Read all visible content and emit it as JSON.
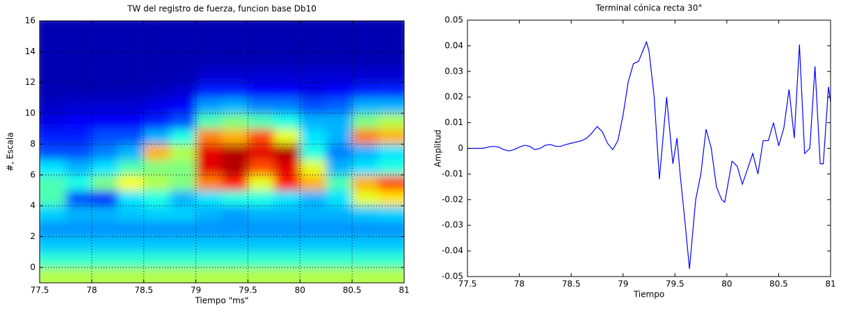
{
  "chart_data": [
    {
      "type": "heatmap",
      "title": "TW del registro de fuerza, funcion base Db10",
      "x_label": "Tiempo \"ms\"",
      "y_label": "#, Escala",
      "colormap": "jet",
      "grid": true,
      "x": [
        77.625,
        77.875,
        78.125,
        78.375,
        78.625,
        78.875,
        79.125,
        79.375,
        79.625,
        79.875,
        80.125,
        80.375,
        80.625,
        80.875
      ],
      "y": [
        -0.5,
        0.5,
        1.5,
        2.5,
        3.5,
        4.5,
        5.5,
        6.5,
        7.5,
        8.5,
        9.5,
        10.5,
        11.5,
        12.5,
        13.5,
        14.5,
        15.5
      ],
      "z": [
        [
          0.55,
          0.55,
          0.55,
          0.55,
          0.55,
          0.55,
          0.55,
          0.55,
          0.55,
          0.55,
          0.55,
          0.55,
          0.55,
          0.55
        ],
        [
          0.42,
          0.42,
          0.42,
          0.42,
          0.42,
          0.42,
          0.42,
          0.42,
          0.42,
          0.42,
          0.42,
          0.42,
          0.42,
          0.42
        ],
        [
          0.32,
          0.32,
          0.32,
          0.32,
          0.32,
          0.32,
          0.32,
          0.32,
          0.32,
          0.32,
          0.32,
          0.32,
          0.32,
          0.32
        ],
        [
          0.27,
          0.27,
          0.27,
          0.27,
          0.27,
          0.27,
          0.27,
          0.27,
          0.27,
          0.27,
          0.27,
          0.27,
          0.27,
          0.27
        ],
        [
          0.33,
          0.3,
          0.3,
          0.32,
          0.33,
          0.33,
          0.3,
          0.28,
          0.3,
          0.3,
          0.3,
          0.3,
          0.32,
          0.33
        ],
        [
          0.45,
          0.2,
          0.15,
          0.35,
          0.4,
          0.3,
          0.35,
          0.4,
          0.4,
          0.35,
          0.3,
          0.35,
          0.6,
          0.65
        ],
        [
          0.45,
          0.4,
          0.5,
          0.62,
          0.55,
          0.5,
          0.75,
          0.85,
          0.6,
          0.85,
          0.7,
          0.45,
          0.7,
          0.8
        ],
        [
          0.35,
          0.3,
          0.35,
          0.45,
          0.5,
          0.5,
          0.9,
          0.95,
          0.8,
          0.9,
          0.6,
          0.3,
          0.35,
          0.4
        ],
        [
          0.2,
          0.2,
          0.25,
          0.3,
          0.7,
          0.55,
          0.9,
          0.95,
          0.9,
          0.95,
          0.4,
          0.25,
          0.3,
          0.35
        ],
        [
          0.15,
          0.15,
          0.2,
          0.2,
          0.3,
          0.4,
          0.75,
          0.7,
          0.8,
          0.6,
          0.35,
          0.3,
          0.75,
          0.7
        ],
        [
          0.1,
          0.12,
          0.12,
          0.12,
          0.15,
          0.2,
          0.45,
          0.5,
          0.45,
          0.4,
          0.3,
          0.3,
          0.5,
          0.55
        ],
        [
          0.07,
          0.08,
          0.08,
          0.08,
          0.1,
          0.12,
          0.28,
          0.3,
          0.25,
          0.25,
          0.2,
          0.22,
          0.3,
          0.3
        ],
        [
          0.05,
          0.05,
          0.05,
          0.05,
          0.06,
          0.08,
          0.15,
          0.15,
          0.12,
          0.12,
          0.1,
          0.12,
          0.15,
          0.16
        ],
        [
          0.05,
          0.05,
          0.05,
          0.05,
          0.05,
          0.05,
          0.08,
          0.08,
          0.08,
          0.08,
          0.08,
          0.08,
          0.08,
          0.08
        ],
        [
          0.05,
          0.05,
          0.05,
          0.05,
          0.05,
          0.05,
          0.05,
          0.05,
          0.05,
          0.05,
          0.05,
          0.05,
          0.05,
          0.05
        ],
        [
          0.05,
          0.05,
          0.05,
          0.05,
          0.05,
          0.05,
          0.05,
          0.05,
          0.05,
          0.05,
          0.05,
          0.05,
          0.05,
          0.05
        ],
        [
          0.05,
          0.05,
          0.05,
          0.05,
          0.05,
          0.05,
          0.05,
          0.05,
          0.05,
          0.05,
          0.05,
          0.05,
          0.05,
          0.05
        ]
      ],
      "xlim": [
        77.5,
        81
      ],
      "ylim": [
        -1,
        16
      ],
      "xticks": [
        77.5,
        78,
        78.5,
        79,
        79.5,
        80,
        80.5,
        81
      ],
      "yticks": [
        0,
        2,
        4,
        6,
        8,
        10,
        12,
        14,
        16
      ]
    },
    {
      "type": "line",
      "title": "Terminal cónica recta 30°",
      "x_label": "Tiempo",
      "y_label": "Amplitud",
      "grid": false,
      "x": [
        77.5,
        77.55,
        77.6,
        77.65,
        77.7,
        77.75,
        77.8,
        77.85,
        77.9,
        77.95,
        78.0,
        78.05,
        78.1,
        78.15,
        78.2,
        78.25,
        78.3,
        78.35,
        78.4,
        78.45,
        78.5,
        78.55,
        78.6,
        78.65,
        78.7,
        78.75,
        78.8,
        78.85,
        78.9,
        78.95,
        79.0,
        79.05,
        79.1,
        79.15,
        79.2,
        79.225,
        79.25,
        79.3,
        79.35,
        79.42,
        79.48,
        79.52,
        79.55,
        79.6,
        79.64,
        79.7,
        79.75,
        79.8,
        79.85,
        79.9,
        79.95,
        79.98,
        80.05,
        80.1,
        80.15,
        80.2,
        80.25,
        80.3,
        80.35,
        80.4,
        80.45,
        80.5,
        80.55,
        80.6,
        80.65,
        80.7,
        80.75,
        80.8,
        80.85,
        80.9,
        80.93,
        80.98,
        81.0
      ],
      "series": [
        {
          "name": "Amplitud",
          "color": "#0000ff",
          "values": [
            0,
            0,
            0,
            0,
            0.0005,
            0.0008,
            0.0005,
            -0.0005,
            -0.001,
            -0.0005,
            0.0005,
            0.0012,
            0.0008,
            -0.0005,
            0,
            0.0012,
            0.0015,
            0.0008,
            0.0008,
            0.0015,
            0.002,
            0.0025,
            0.003,
            0.004,
            0.006,
            0.0085,
            0.0065,
            0.002,
            -0.0005,
            0.003,
            0.013,
            0.026,
            0.033,
            0.034,
            0.039,
            0.0415,
            0.038,
            0.02,
            -0.012,
            0.02,
            -0.006,
            0.004,
            -0.01,
            -0.03,
            -0.047,
            -0.02,
            -0.01,
            0.0075,
            0,
            -0.015,
            -0.02,
            -0.021,
            -0.005,
            -0.007,
            -0.014,
            -0.008,
            -0.002,
            -0.01,
            0.003,
            0.003,
            0.01,
            0.001,
            0.008,
            0.023,
            0.004,
            0.0405,
            -0.002,
            0,
            0.032,
            -0.006,
            -0.006,
            0.024,
            0.018
          ]
        }
      ],
      "xlim": [
        77.5,
        81
      ],
      "ylim": [
        -0.05,
        0.05
      ],
      "xticks": [
        77.5,
        78,
        78.5,
        79,
        79.5,
        80,
        80.5,
        81
      ],
      "yticks": [
        -0.05,
        -0.04,
        -0.03,
        -0.02,
        -0.01,
        0,
        0.01,
        0.02,
        0.03,
        0.04,
        0.05
      ]
    }
  ]
}
